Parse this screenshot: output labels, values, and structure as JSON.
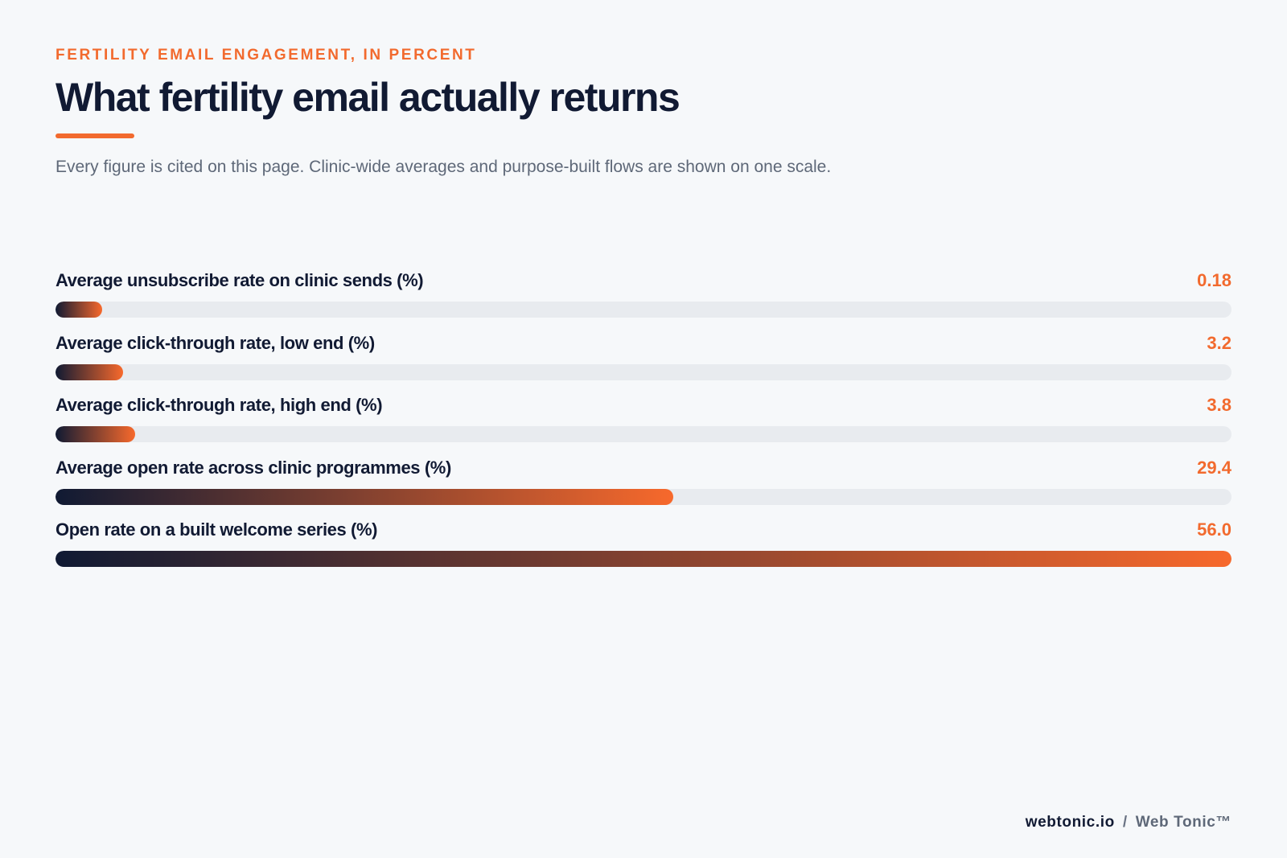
{
  "header": {
    "kicker": "FERTILITY EMAIL ENGAGEMENT, IN PERCENT",
    "title": "What fertility email actually returns",
    "subtitle": "Every figure is cited on this page. Clinic-wide averages and purpose-built flows are shown on one scale."
  },
  "chart_data": {
    "type": "bar",
    "orientation": "horizontal",
    "categories": [
      "Average unsubscribe rate on clinic sends (%)",
      "Average click-through rate, low end (%)",
      "Average click-through rate, high end (%)",
      "Average open rate across clinic programmes (%)",
      "Open rate on a built welcome series (%)"
    ],
    "values": [
      0.18,
      3.2,
      3.8,
      29.4,
      56.0
    ],
    "value_labels": [
      "0.18",
      "3.2",
      "3.8",
      "29.4",
      "56.0"
    ],
    "xlim": [
      0,
      56.0
    ],
    "grid": false,
    "colors": {
      "bar_start": "#101a33",
      "bar_end": "#f7692c",
      "track": "#e8ebef",
      "value_text": "#f26a2e"
    }
  },
  "footer": {
    "domain": "webtonic.io",
    "separator": "/",
    "brand": "Web Tonic™"
  }
}
